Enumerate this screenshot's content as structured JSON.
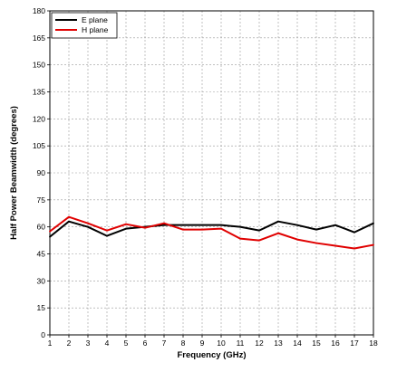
{
  "chart_data": {
    "type": "line",
    "title": "",
    "xlabel": "Frequency (GHz)",
    "ylabel": "Half Power Beamwidth (degrees)",
    "xlim": [
      1,
      18
    ],
    "ylim": [
      0,
      180
    ],
    "x_ticks": [
      1,
      2,
      3,
      4,
      5,
      6,
      7,
      8,
      9,
      10,
      11,
      12,
      13,
      14,
      15,
      16,
      17,
      18
    ],
    "y_ticks": [
      0,
      15,
      30,
      45,
      60,
      75,
      90,
      105,
      120,
      135,
      150,
      165,
      180
    ],
    "grid": true,
    "legend_position": "top-left",
    "x": [
      1,
      2,
      3,
      4,
      5,
      6,
      7,
      8,
      9,
      10,
      11,
      12,
      13,
      14,
      15,
      16,
      17,
      18
    ],
    "series": [
      {
        "name": "E plane",
        "color": "#000000",
        "values": [
          54.5,
          63,
          60,
          55,
          59,
          60,
          61,
          61,
          61,
          61,
          60,
          58,
          63,
          61,
          58.5,
          61,
          57,
          62
        ]
      },
      {
        "name": "H plane",
        "color": "#e00000",
        "values": [
          57.5,
          65.5,
          62,
          58,
          61.5,
          59.5,
          62,
          58.5,
          58.5,
          59,
          53.5,
          52.5,
          56.5,
          53,
          51,
          49.5,
          48,
          50
        ]
      }
    ]
  }
}
